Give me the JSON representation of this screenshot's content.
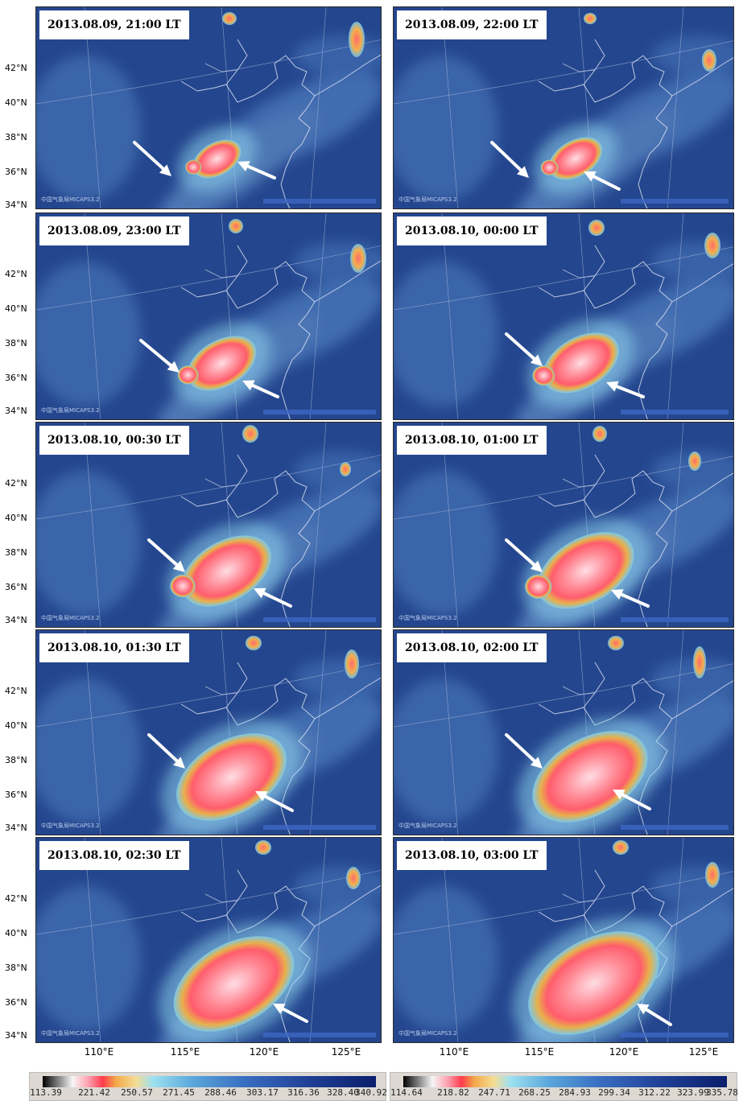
{
  "panels": [
    {
      "timestamp": "2013.08.09, 21:00 LT",
      "credit": "中国气象局MICAPS3.2",
      "show_lat": true
    },
    {
      "timestamp": "2013.08.09, 22:00 LT",
      "credit": "中国气象局MICAPS3.2",
      "show_lat": false
    },
    {
      "timestamp": "2013.08.09, 23:00 LT",
      "credit": "中国气象局MICAPS3.2",
      "show_lat": true
    },
    {
      "timestamp": "2013.08.10, 00:00 LT",
      "credit": "",
      "show_lat": false
    },
    {
      "timestamp": "2013.08.10, 00:30 LT",
      "credit": "中国气象局MICAPS3.2",
      "show_lat": true
    },
    {
      "timestamp": "2013.08.10, 01:00 LT",
      "credit": "中国气象局MICAPS3.2",
      "show_lat": false
    },
    {
      "timestamp": "2013.08.10, 01:30 LT",
      "credit": "中国气象局MICAPS3.2",
      "show_lat": true
    },
    {
      "timestamp": "2013.08.10, 02:00 LT",
      "credit": "中国气象局MICAPS3.2",
      "show_lat": false
    },
    {
      "timestamp": "2013.08.10, 02:30 LT",
      "credit": "中国气象局MICAPS3.2",
      "show_lat": true
    },
    {
      "timestamp": "2013.08.10, 03:00 LT",
      "credit": "中国气象局MICAPS3.2",
      "show_lat": false
    }
  ],
  "lat_labels": [
    "42°N",
    "40°N",
    "38°N",
    "36°N",
    "34°N"
  ],
  "lon_labels": [
    "110°E",
    "115°E",
    "120°E",
    "125°E"
  ],
  "colorbars": [
    {
      "ticks": [
        "113.39",
        "221.42",
        "250.57",
        "271.45",
        "288.46",
        "303.17",
        "316.36",
        "328.40",
        "340.92"
      ]
    },
    {
      "ticks": [
        "114.64",
        "218.82",
        "247.71",
        "268.25",
        "284.93",
        "299.34",
        "312.22",
        "323.99",
        "335.78"
      ]
    }
  ],
  "colors": {
    "background_blue": "#24468e",
    "storm_core": "#ff8a96",
    "storm_center": "#ffdde4",
    "storm_edge": "#e8b04a",
    "arrow": "#ffffff"
  }
}
